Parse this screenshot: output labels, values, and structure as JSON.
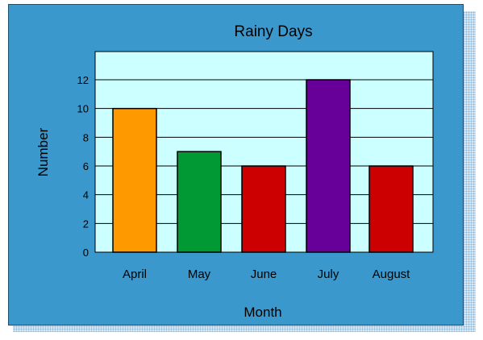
{
  "colors": {
    "panel": "#3a98cc",
    "plot_area": "#ccffff",
    "shadow": "#9cc7e6"
  },
  "chart_data": {
    "type": "bar",
    "title": "Rainy Days",
    "xlabel": "Month",
    "ylabel": "Number",
    "categories": [
      "April",
      "May",
      "June",
      "July",
      "August"
    ],
    "values": [
      10,
      7,
      6,
      12,
      6
    ],
    "colors": [
      "#ff9900",
      "#009933",
      "#cc0000",
      "#660099",
      "#cc0000"
    ],
    "yticks": [
      "0",
      "2",
      "4",
      "6",
      "8",
      "10",
      "12"
    ],
    "ylim": [
      0,
      14
    ],
    "grid": true,
    "legend": "none"
  }
}
